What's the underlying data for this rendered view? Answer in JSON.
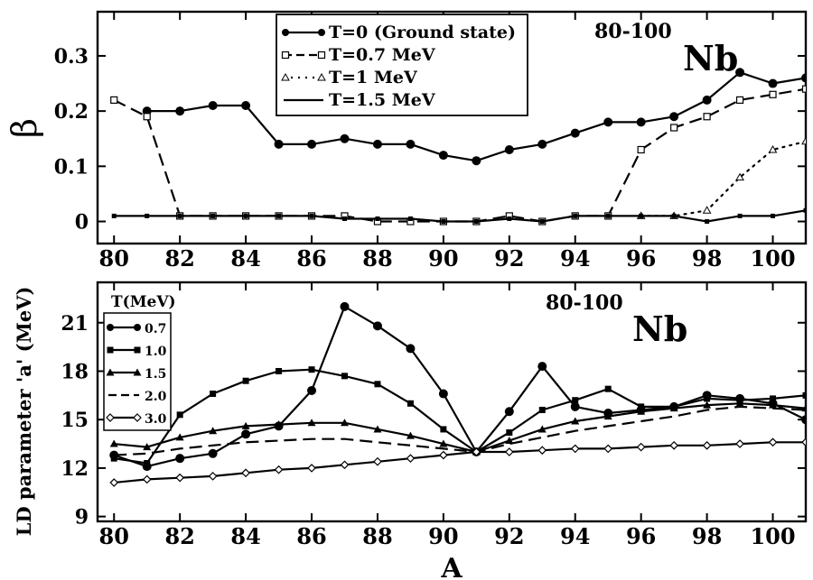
{
  "x_label": "A",
  "chart_data": [
    {
      "type": "line",
      "title": "",
      "nucleus_label": {
        "mass": "80-100",
        "element": "Nb"
      },
      "xlabel": "",
      "ylabel": "β",
      "xlim": [
        79.5,
        101
      ],
      "ylim": [
        -0.04,
        0.38
      ],
      "x_ticks": [
        80,
        82,
        84,
        86,
        88,
        90,
        92,
        94,
        96,
        98,
        100
      ],
      "x_tick_labels": [
        "80",
        "82",
        "84",
        "86",
        "88",
        "90",
        "92",
        "94",
        "96",
        "98",
        "100"
      ],
      "y_ticks": [
        0,
        0.1,
        0.2,
        0.3
      ],
      "y_tick_labels": [
        "0",
        "0.1",
        "0.2",
        "0.3"
      ],
      "legend_position": "top-center",
      "series": [
        {
          "name": "T=0 (Ground state)",
          "style": "solid-circle",
          "x": [
            81,
            82,
            83,
            84,
            85,
            86,
            87,
            88,
            89,
            90,
            91,
            92,
            93,
            94,
            95,
            96,
            97,
            98,
            99,
            100,
            101
          ],
          "y": [
            0.2,
            0.2,
            0.21,
            0.21,
            0.14,
            0.14,
            0.15,
            0.14,
            0.14,
            0.12,
            0.11,
            0.13,
            0.14,
            0.16,
            0.18,
            0.18,
            0.19,
            0.22,
            0.27,
            0.25,
            0.26
          ]
        },
        {
          "name": "T=0.7 MeV",
          "style": "dashed-square",
          "x": [
            80,
            81,
            82,
            83,
            84,
            85,
            86,
            87,
            88,
            89,
            90,
            91,
            92,
            93,
            94,
            95,
            96,
            97,
            98,
            99,
            100,
            101
          ],
          "y": [
            0.22,
            0.19,
            0.01,
            0.01,
            0.01,
            0.01,
            0.01,
            0.01,
            0.0,
            0.0,
            0.0,
            0.0,
            0.01,
            0.0,
            0.01,
            0.01,
            0.13,
            0.17,
            0.19,
            0.22,
            0.23,
            0.24
          ]
        },
        {
          "name": "T=1 MeV",
          "style": "dotted-triangle",
          "x": [
            96,
            97,
            98,
            99,
            100,
            101
          ],
          "y": [
            0.01,
            0.01,
            0.02,
            0.08,
            0.13,
            0.145
          ]
        },
        {
          "name": "T=1.5 MeV",
          "style": "solid",
          "x": [
            80,
            81,
            82,
            83,
            84,
            85,
            86,
            87,
            88,
            89,
            90,
            91,
            92,
            93,
            94,
            95,
            96,
            97,
            98,
            99,
            100,
            101
          ],
          "y": [
            0.01,
            0.01,
            0.01,
            0.01,
            0.01,
            0.01,
            0.01,
            0.005,
            0.005,
            0.005,
            0.0,
            0.0,
            0.005,
            0.0,
            0.01,
            0.01,
            0.01,
            0.01,
            0.0,
            0.01,
            0.01,
            0.02
          ]
        }
      ]
    },
    {
      "type": "line",
      "title": "",
      "nucleus_label": {
        "mass": "80-100",
        "element": "Nb"
      },
      "xlabel": "A",
      "ylabel": "LD parameter 'a' (MeV)",
      "xlim": [
        79.5,
        101
      ],
      "ylim": [
        8.7,
        23.5
      ],
      "x_ticks": [
        80,
        82,
        84,
        86,
        88,
        90,
        92,
        94,
        96,
        98,
        100
      ],
      "x_tick_labels": [
        "80",
        "82",
        "84",
        "86",
        "88",
        "90",
        "92",
        "94",
        "96",
        "98",
        "100"
      ],
      "y_ticks": [
        9,
        12,
        15,
        18,
        21
      ],
      "y_tick_labels": [
        "9",
        "12",
        "15",
        "18",
        "21"
      ],
      "legend_title": "T(MeV)",
      "legend_position": "top-left",
      "series": [
        {
          "name": "0.7",
          "style": "solid-circle",
          "x": [
            80,
            81,
            82,
            83,
            84,
            85,
            86,
            87,
            88,
            89,
            90,
            91,
            92,
            93,
            94,
            95,
            96,
            97,
            98,
            99,
            100,
            101
          ],
          "y": [
            12.8,
            12.1,
            12.6,
            12.9,
            14.1,
            14.6,
            16.8,
            22.0,
            20.8,
            19.4,
            16.6,
            13.0,
            15.5,
            18.3,
            15.8,
            15.4,
            15.6,
            15.8,
            16.5,
            16.3,
            16.0,
            15.0
          ]
        },
        {
          "name": "1.0",
          "style": "solid-square",
          "x": [
            80,
            81,
            82,
            83,
            84,
            85,
            86,
            87,
            88,
            89,
            90,
            91,
            92,
            93,
            94,
            95,
            96,
            97,
            98,
            99,
            100,
            101
          ],
          "y": [
            12.6,
            12.3,
            15.3,
            16.6,
            17.4,
            18.0,
            18.1,
            17.7,
            17.2,
            16.0,
            14.4,
            13.0,
            14.2,
            15.6,
            16.2,
            16.9,
            15.8,
            15.8,
            16.3,
            16.2,
            16.3,
            16.5
          ]
        },
        {
          "name": "1.5",
          "style": "solid-triangle",
          "x": [
            80,
            81,
            82,
            83,
            84,
            85,
            86,
            87,
            88,
            89,
            90,
            91,
            92,
            93,
            94,
            95,
            96,
            97,
            98,
            99,
            100,
            101
          ],
          "y": [
            13.5,
            13.3,
            13.9,
            14.3,
            14.6,
            14.7,
            14.8,
            14.8,
            14.4,
            14.0,
            13.5,
            13.0,
            13.7,
            14.4,
            14.9,
            15.2,
            15.5,
            15.7,
            15.9,
            16.0,
            15.9,
            15.7
          ]
        },
        {
          "name": "2.0",
          "style": "dashed",
          "x": [
            80,
            81,
            82,
            83,
            84,
            85,
            86,
            87,
            88,
            89,
            90,
            91,
            92,
            93,
            94,
            95,
            96,
            97,
            98,
            99,
            100,
            101
          ],
          "y": [
            12.8,
            12.9,
            13.2,
            13.4,
            13.6,
            13.7,
            13.8,
            13.8,
            13.6,
            13.4,
            13.2,
            13.0,
            13.5,
            13.9,
            14.3,
            14.6,
            14.9,
            15.2,
            15.6,
            15.8,
            15.7,
            15.6
          ]
        },
        {
          "name": "3.0",
          "style": "solid-diamond",
          "x": [
            80,
            81,
            82,
            83,
            84,
            85,
            86,
            87,
            88,
            89,
            90,
            91,
            92,
            93,
            94,
            95,
            96,
            97,
            98,
            99,
            100,
            101
          ],
          "y": [
            11.1,
            11.3,
            11.4,
            11.5,
            11.7,
            11.9,
            12.0,
            12.2,
            12.4,
            12.6,
            12.8,
            13.0,
            13.0,
            13.1,
            13.2,
            13.2,
            13.3,
            13.4,
            13.4,
            13.5,
            13.6,
            13.6
          ]
        }
      ]
    }
  ]
}
